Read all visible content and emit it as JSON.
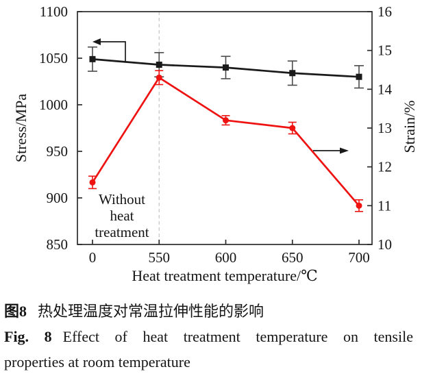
{
  "chart_data": {
    "type": "line",
    "title": "",
    "xlabel": "Heat treatment temperature/℃",
    "ylabel_left": "Stress/MPa",
    "ylabel_right": "Strain/%",
    "x_tick_labels": [
      "0",
      "550",
      "600",
      "650",
      "700"
    ],
    "left_axis": {
      "min": 850,
      "max": 1100,
      "ticks": [
        1100,
        1050,
        1000,
        950,
        900,
        850
      ]
    },
    "right_axis": {
      "min": 10,
      "max": 16,
      "ticks": [
        16,
        15,
        14,
        13,
        12,
        11,
        10
      ]
    },
    "grid": false,
    "legend": "none",
    "series": [
      {
        "name": "stress",
        "axis": "left",
        "marker": "square",
        "color": "#1a1a1a",
        "error_color": "#4a4a4a",
        "values": [
          1049,
          1043,
          1040,
          1034,
          1030
        ],
        "errors": [
          13,
          13,
          12,
          13,
          12
        ]
      },
      {
        "name": "strain",
        "axis": "right",
        "marker": "circle",
        "color": "#ee1311",
        "error_color": "#ee1311",
        "values": [
          11.6,
          14.3,
          13.2,
          13.0,
          11.0
        ],
        "errors": [
          0.16,
          0.18,
          0.12,
          0.15,
          0.15
        ]
      }
    ],
    "reference_line": {
      "at_category_index": 1,
      "style": "dashed",
      "color": "#c4c4c4"
    },
    "annotations": {
      "without_heat_treatment": {
        "lines": [
          "Without",
          "heat",
          "treatment"
        ]
      },
      "arrows": [
        {
          "direction": "left",
          "axis": "left"
        },
        {
          "direction": "right",
          "axis": "right"
        }
      ]
    }
  },
  "caption": {
    "cn_label": "图8",
    "cn_text": "热处理温度对常温拉伸性能的影响",
    "en_label": "Fig. 8",
    "en_line1": "Effect of heat treatment temperature on tensile",
    "en_line2": "properties at room temperature"
  }
}
